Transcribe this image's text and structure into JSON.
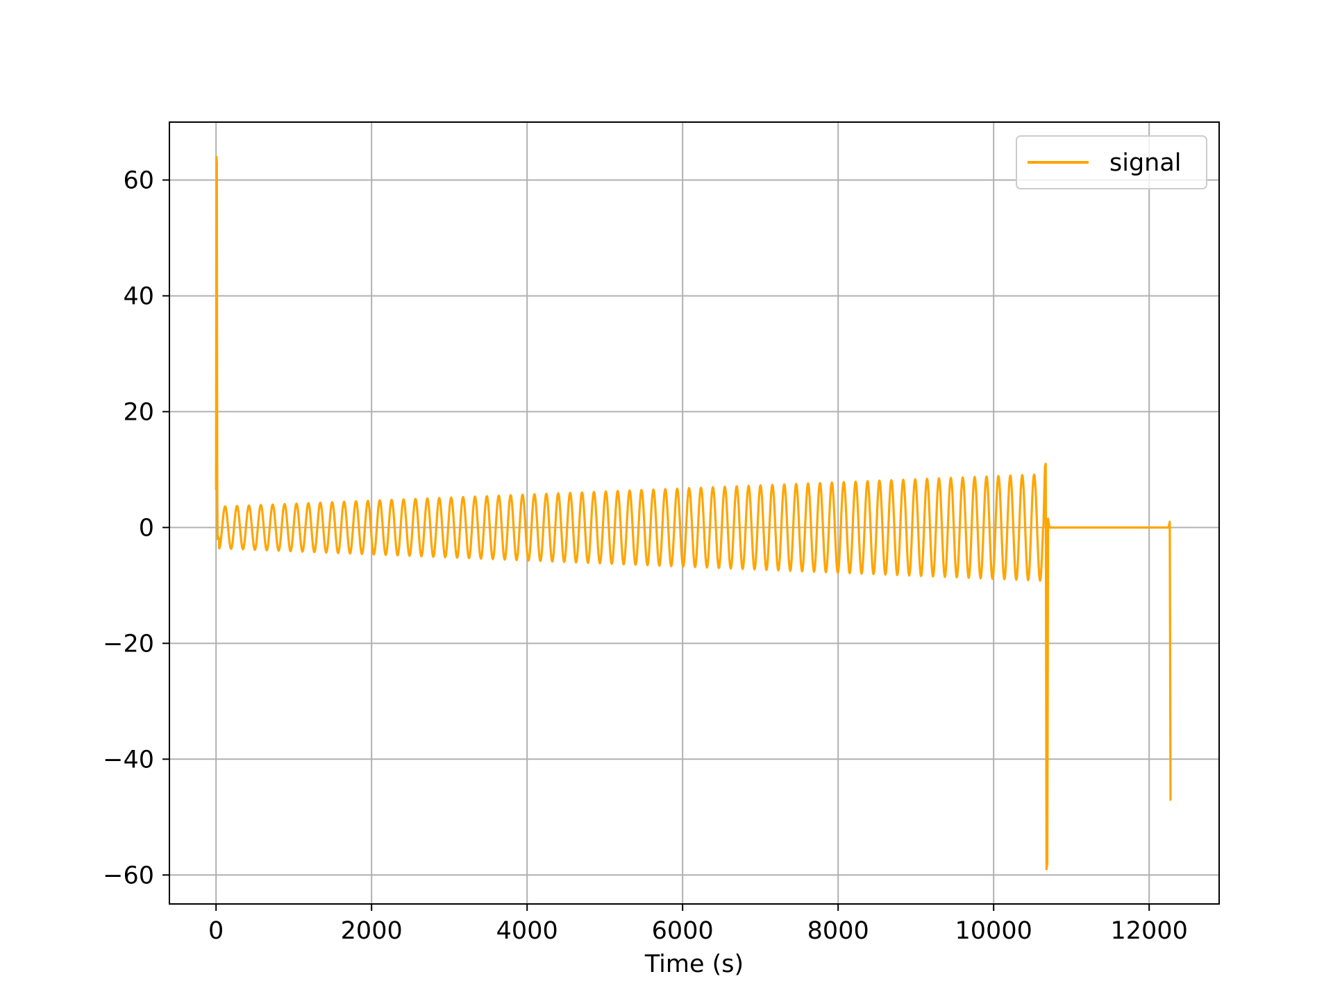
{
  "chart_data": {
    "type": "line",
    "title": "",
    "xlabel": "Time (s)",
    "ylabel": "",
    "xlim": [
      -600,
      12900
    ],
    "ylim": [
      -65,
      70
    ],
    "grid": true,
    "legend_position": "top-right",
    "x_ticks": [
      0,
      2000,
      4000,
      6000,
      8000,
      10000,
      12000
    ],
    "y_ticks": [
      -60,
      -40,
      -20,
      0,
      20,
      40,
      60
    ],
    "x_tick_labels": [
      "0",
      "2000",
      "4000",
      "6000",
      "8000",
      "10000",
      "12000"
    ],
    "y_tick_labels": [
      "−60",
      "−40",
      "−20",
      "0",
      "20",
      "40",
      "60"
    ],
    "series": [
      {
        "name": "signal",
        "color": "#FFA500",
        "segments": [
          {
            "kind": "points",
            "x": [
              0,
              5,
              10,
              15,
              20,
              25,
              40
            ],
            "y": [
              6.5,
              64,
              63,
              7,
              -2,
              -1.5,
              -2
            ]
          },
          {
            "kind": "oscillation",
            "x_start": 40,
            "x_end": 10640,
            "period": 153,
            "amp_start": 3.6,
            "amp_end": 9.2,
            "offset": 0
          },
          {
            "kind": "points",
            "x": [
              10640,
              10660,
              10670,
              10680,
              10690,
              10700,
              10710,
              10720,
              10740,
              10800,
              12250,
              12265,
              12275,
              12285
            ],
            "y": [
              0,
              10.5,
              11,
              -59,
              -58,
              1.5,
              0.5,
              0,
              0,
              0,
              0,
              1,
              -47,
              -47
            ]
          }
        ]
      }
    ]
  }
}
